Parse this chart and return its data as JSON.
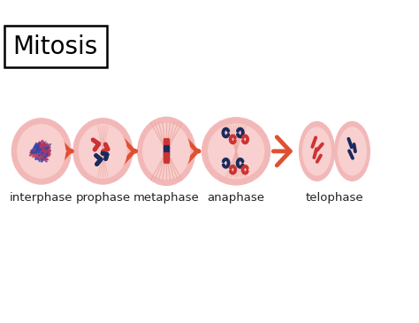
{
  "title": "Mitosis",
  "stages": [
    "interphase",
    "prophase",
    "metaphase",
    "anaphase",
    "telophase"
  ],
  "bg_color": "#ffffff",
  "cell_outer": "#f2b8b8",
  "cell_inner": "#f9d0d0",
  "chr_red": "#cc3333",
  "chr_blue": "#1a2a5e",
  "spindle_color": "#e8a8a0",
  "arrow_color": "#e05030",
  "label_color": "#222222",
  "title_fontsize": 20,
  "label_fontsize": 9.5
}
